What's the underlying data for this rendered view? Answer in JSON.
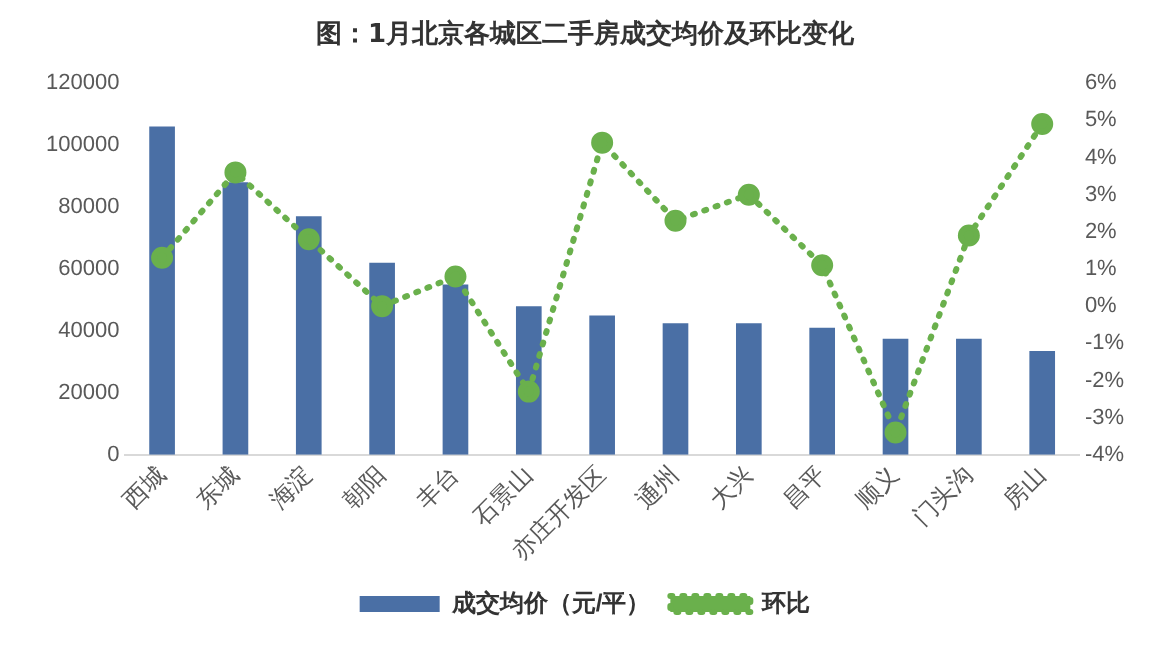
{
  "chart_data": {
    "type": "bar",
    "title": "图：1月北京各城区二手房成交均价及环比变化",
    "categories": [
      "西城",
      "东城",
      "海淀",
      "朝阳",
      "丰台",
      "石景山",
      "亦庄开发区",
      "通州",
      "大兴",
      "昌平",
      "顺义",
      "门头沟",
      "房山"
    ],
    "series": [
      {
        "name": "成交均价（元/平）",
        "color": "#4a6fa5",
        "values": [
          106000,
          88000,
          77000,
          62000,
          55000,
          48000,
          45000,
          42500,
          42500,
          41000,
          37500,
          37500,
          33500
        ]
      },
      {
        "name": "环比",
        "type": "line",
        "axis": "y2",
        "color": "#6ab04c",
        "line_style": "dotted",
        "marker": "circle",
        "values": [
          1.3,
          3.6,
          1.8,
          0.0,
          0.8,
          -2.3,
          4.4,
          2.3,
          3.0,
          1.1,
          -3.4,
          1.9,
          4.9
        ]
      }
    ],
    "ylim": [
      0,
      120000
    ],
    "yticks": [
      0,
      20000,
      40000,
      60000,
      80000,
      100000,
      120000
    ],
    "y2lim": [
      -4,
      6
    ],
    "y2ticks": [
      {
        "value": -4,
        "label": "-4%"
      },
      {
        "value": -3,
        "label": "-3%"
      },
      {
        "value": -2,
        "label": "-2%"
      },
      {
        "value": -1,
        "label": "-1%"
      },
      {
        "value": 0,
        "label": "0%"
      },
      {
        "value": 1,
        "label": "1%"
      },
      {
        "value": 2,
        "label": "2%"
      },
      {
        "value": 3,
        "label": "3%"
      },
      {
        "value": 4,
        "label": "4%"
      },
      {
        "value": 5,
        "label": "5%"
      },
      {
        "value": 6,
        "label": "6%"
      }
    ],
    "grid": false,
    "legend": "bottom"
  }
}
